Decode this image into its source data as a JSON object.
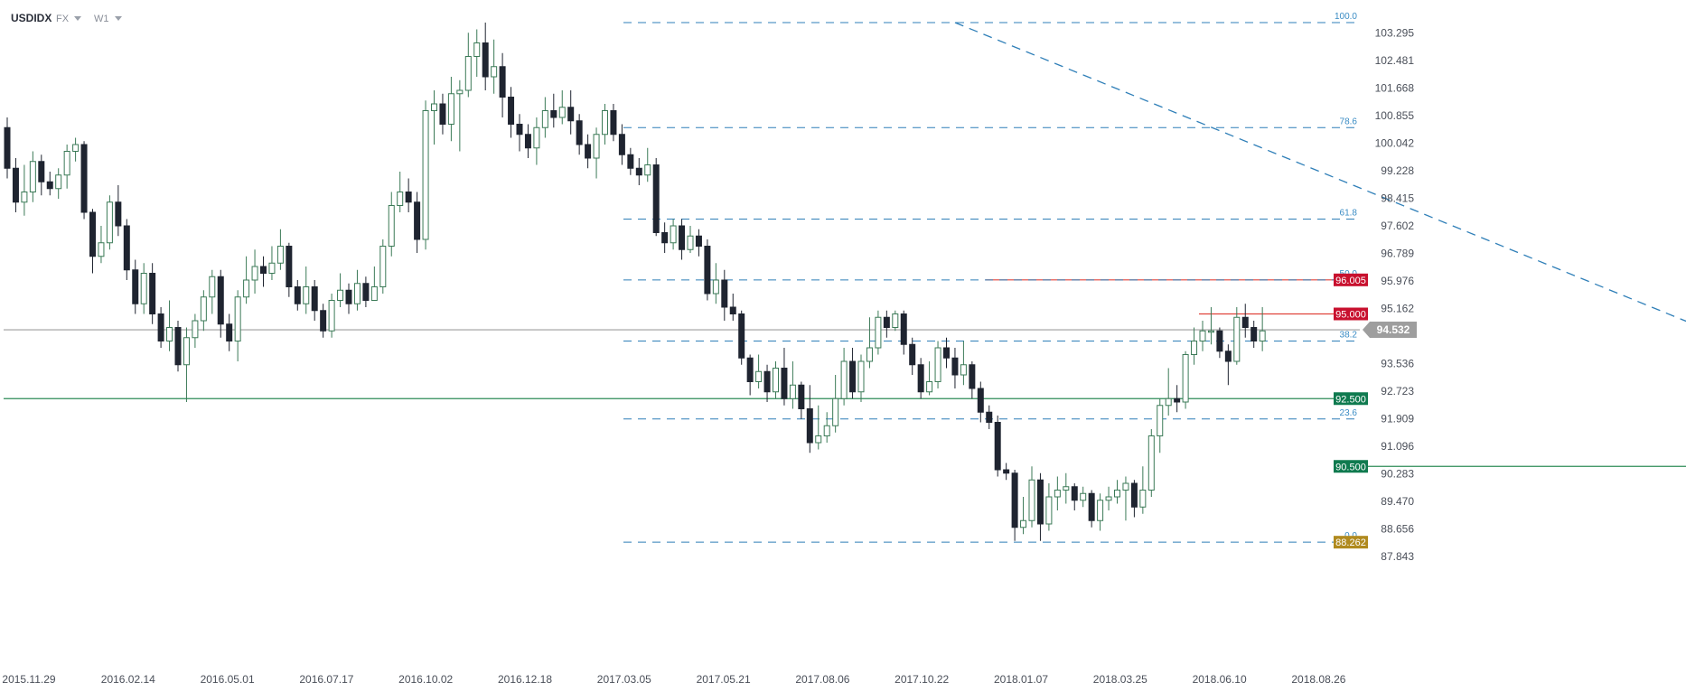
{
  "header": {
    "symbol": "USDIDX",
    "market": "FX",
    "interval": "W1"
  },
  "chart_data": {
    "type": "candlestick",
    "y_ticks": [
      103.295,
      102.481,
      101.668,
      100.855,
      100.042,
      99.228,
      98.415,
      97.602,
      96.789,
      95.976,
      95.162,
      93.536,
      92.723,
      91.909,
      91.096,
      90.283,
      89.47,
      88.656,
      87.843
    ],
    "ylim": [
      87.6,
      104.0
    ],
    "x_ticks": [
      "2015.11.29",
      "2016.02.14",
      "2016.05.01",
      "2016.07.17",
      "2016.10.02",
      "2016.12.18",
      "2017.03.05",
      "2017.05.21",
      "2017.08.06",
      "2017.10.22",
      "2018.01.07",
      "2018.03.25",
      "2018.06.10",
      "2018.08.26"
    ],
    "current_price": "94.532",
    "price_tags": [
      {
        "label": "96.005",
        "value": 96.005,
        "color": "#c8102e"
      },
      {
        "label": "95.000",
        "value": 95.0,
        "color": "#c8102e"
      },
      {
        "label": "92.500",
        "value": 92.5,
        "color": "#0f7a4f"
      },
      {
        "label": "90.500",
        "value": 90.5,
        "color": "#0f7a4f"
      },
      {
        "label": "88.262",
        "value": 88.262,
        "color": "#b08a1e"
      }
    ],
    "fib_levels": [
      {
        "label": "100.0",
        "value": 103.6
      },
      {
        "label": "78.6",
        "value": 100.5
      },
      {
        "label": "61.8",
        "value": 97.8
      },
      {
        "label": "50.0",
        "value": 96.005
      },
      {
        "label": "38.2",
        "value": 94.2
      },
      {
        "label": "23.6",
        "value": 91.9
      },
      {
        "label": "0.0",
        "value": 88.262
      }
    ],
    "horizontal_lines": [
      {
        "value": 96.005,
        "color": "#e0433a",
        "from_week": 115
      },
      {
        "value": 95.0,
        "color": "#e0433a",
        "from_week": 140
      },
      {
        "value": 92.5,
        "color": "#2e8b57",
        "from_week": 0
      },
      {
        "value": 90.5,
        "color": "#2e8b57",
        "from_week": 226
      },
      {
        "value": 94.532,
        "color": "#9e9e9e",
        "from_week": 0
      }
    ],
    "trendline": {
      "from": [
        111,
        103.6
      ],
      "to": [
        260,
        88.262
      ]
    },
    "highlight": {
      "week": 266,
      "value": 95.05
    },
    "candles": [
      [
        100.5,
        99.3,
        100.8,
        99.0
      ],
      [
        99.3,
        98.3,
        99.6,
        98.0
      ],
      [
        98.3,
        98.6,
        99.4,
        97.9
      ],
      [
        98.6,
        99.5,
        99.8,
        98.3
      ],
      [
        99.5,
        98.9,
        99.7,
        98.5
      ],
      [
        98.9,
        98.7,
        99.2,
        98.5
      ],
      [
        98.7,
        99.1,
        99.3,
        98.4
      ],
      [
        99.1,
        99.8,
        100.0,
        98.7
      ],
      [
        99.8,
        100.0,
        100.2,
        99.5
      ],
      [
        100.0,
        98.0,
        100.1,
        97.8
      ],
      [
        98.0,
        96.7,
        98.1,
        96.2
      ],
      [
        96.7,
        97.1,
        97.6,
        96.5
      ],
      [
        97.1,
        98.3,
        98.5,
        96.9
      ],
      [
        98.3,
        97.6,
        98.8,
        97.3
      ],
      [
        97.6,
        96.3,
        97.8,
        96.0
      ],
      [
        96.3,
        95.3,
        96.6,
        95.0
      ],
      [
        95.3,
        96.2,
        96.5,
        95.0
      ],
      [
        96.2,
        95.0,
        96.5,
        94.7
      ],
      [
        95.0,
        94.2,
        95.2,
        94.0
      ],
      [
        94.2,
        94.6,
        95.4,
        93.9
      ],
      [
        94.6,
        93.5,
        94.8,
        93.3
      ],
      [
        93.5,
        94.3,
        94.6,
        92.4
      ],
      [
        94.3,
        94.8,
        95.0,
        94.0
      ],
      [
        94.8,
        95.5,
        95.7,
        94.5
      ],
      [
        95.5,
        96.1,
        96.3,
        95.0
      ],
      [
        96.1,
        94.7,
        96.3,
        94.3
      ],
      [
        94.7,
        94.2,
        95.0,
        93.9
      ],
      [
        94.2,
        95.5,
        95.7,
        93.6
      ],
      [
        95.5,
        96.0,
        96.7,
        95.3
      ],
      [
        96.0,
        96.4,
        96.9,
        95.6
      ],
      [
        96.4,
        96.2,
        96.7,
        95.8
      ],
      [
        96.2,
        96.5,
        97.0,
        96.0
      ],
      [
        96.5,
        97.0,
        97.5,
        96.3
      ],
      [
        97.0,
        95.8,
        97.1,
        95.5
      ],
      [
        95.8,
        95.3,
        96.0,
        95.1
      ],
      [
        95.3,
        95.8,
        96.4,
        95.0
      ],
      [
        95.8,
        95.1,
        96.0,
        94.8
      ],
      [
        95.1,
        94.5,
        95.3,
        94.3
      ],
      [
        94.5,
        95.4,
        95.6,
        94.3
      ],
      [
        95.4,
        95.7,
        96.2,
        95.2
      ],
      [
        95.7,
        95.3,
        95.9,
        95.0
      ],
      [
        95.3,
        95.9,
        96.3,
        95.1
      ],
      [
        95.9,
        95.4,
        96.1,
        95.2
      ],
      [
        95.4,
        95.8,
        96.4,
        95.6
      ],
      [
        95.8,
        97.0,
        97.2,
        95.6
      ],
      [
        97.0,
        98.2,
        98.6,
        96.7
      ],
      [
        98.2,
        98.6,
        99.2,
        98.0
      ],
      [
        98.6,
        98.3,
        99.0,
        98.0
      ],
      [
        98.3,
        97.2,
        98.6,
        96.8
      ],
      [
        97.2,
        101.0,
        101.3,
        96.9
      ],
      [
        101.0,
        101.2,
        101.6,
        100.0
      ],
      [
        101.2,
        100.6,
        101.5,
        100.3
      ],
      [
        100.6,
        101.5,
        102.0,
        100.1
      ],
      [
        101.5,
        101.6,
        101.9,
        99.8
      ],
      [
        101.6,
        102.6,
        103.3,
        101.4
      ],
      [
        102.6,
        103.0,
        103.4,
        102.0
      ],
      [
        103.0,
        102.0,
        103.6,
        101.6
      ],
      [
        102.0,
        102.3,
        103.1,
        101.5
      ],
      [
        102.3,
        101.4,
        102.7,
        100.8
      ],
      [
        101.4,
        100.6,
        101.7,
        100.2
      ],
      [
        100.6,
        100.3,
        100.9,
        99.8
      ],
      [
        100.3,
        99.9,
        100.6,
        99.6
      ],
      [
        99.9,
        100.5,
        100.8,
        99.4
      ],
      [
        100.5,
        101.0,
        101.4,
        100.2
      ],
      [
        101.0,
        100.8,
        101.5,
        100.5
      ],
      [
        100.8,
        101.1,
        101.6,
        100.6
      ],
      [
        101.1,
        100.7,
        101.6,
        100.3
      ],
      [
        100.7,
        100.0,
        100.9,
        99.7
      ],
      [
        100.0,
        99.6,
        100.3,
        99.3
      ],
      [
        99.6,
        100.3,
        100.5,
        99.0
      ],
      [
        100.3,
        101.0,
        101.2,
        100.0
      ],
      [
        101.0,
        100.3,
        101.2,
        100.1
      ],
      [
        100.3,
        99.7,
        100.6,
        99.4
      ],
      [
        99.7,
        99.3,
        99.9,
        99.1
      ],
      [
        99.3,
        99.1,
        99.6,
        98.8
      ],
      [
        99.1,
        99.4,
        99.9,
        98.9
      ],
      [
        99.4,
        97.4,
        99.6,
        97.3
      ],
      [
        97.4,
        97.1,
        97.7,
        96.8
      ],
      [
        97.1,
        97.6,
        97.8,
        96.9
      ],
      [
        97.6,
        96.9,
        97.8,
        96.6
      ],
      [
        96.9,
        97.3,
        97.6,
        96.8
      ],
      [
        97.3,
        97.0,
        97.5,
        96.7
      ],
      [
        97.0,
        95.6,
        97.2,
        95.4
      ],
      [
        95.6,
        96.0,
        96.5,
        95.3
      ],
      [
        96.0,
        95.2,
        96.3,
        94.8
      ],
      [
        95.2,
        95.0,
        95.6,
        94.8
      ],
      [
        95.0,
        93.7,
        95.1,
        93.5
      ],
      [
        93.7,
        93.0,
        93.8,
        92.6
      ],
      [
        93.0,
        93.3,
        93.8,
        92.8
      ],
      [
        93.3,
        92.7,
        93.5,
        92.4
      ],
      [
        92.7,
        93.4,
        93.6,
        92.5
      ],
      [
        93.4,
        92.5,
        94.0,
        92.3
      ],
      [
        92.5,
        92.9,
        93.6,
        92.2
      ],
      [
        92.9,
        92.2,
        93.0,
        91.9
      ],
      [
        92.2,
        91.2,
        92.9,
        90.9
      ],
      [
        91.2,
        91.4,
        92.3,
        91.0
      ],
      [
        91.4,
        91.7,
        92.1,
        91.2
      ],
      [
        91.7,
        92.5,
        93.2,
        91.5
      ],
      [
        92.5,
        93.6,
        94.0,
        92.3
      ],
      [
        93.6,
        92.7,
        94.0,
        92.5
      ],
      [
        92.7,
        93.6,
        93.8,
        92.4
      ],
      [
        93.6,
        94.0,
        94.9,
        93.4
      ],
      [
        94.0,
        94.9,
        95.1,
        93.8
      ],
      [
        94.9,
        94.6,
        95.1,
        94.3
      ],
      [
        94.6,
        95.0,
        95.1,
        94.5
      ],
      [
        95.0,
        94.1,
        95.1,
        93.8
      ],
      [
        94.1,
        93.5,
        94.3,
        93.2
      ],
      [
        93.5,
        92.7,
        93.7,
        92.5
      ],
      [
        92.7,
        93.0,
        93.6,
        92.6
      ],
      [
        93.0,
        94.0,
        94.2,
        92.8
      ],
      [
        94.0,
        93.7,
        94.3,
        93.4
      ],
      [
        93.7,
        93.2,
        94.0,
        92.8
      ],
      [
        93.2,
        93.5,
        94.2,
        92.9
      ],
      [
        93.5,
        92.8,
        93.6,
        92.5
      ],
      [
        92.8,
        92.1,
        93.0,
        91.8
      ],
      [
        92.1,
        91.8,
        92.3,
        91.6
      ],
      [
        91.8,
        90.4,
        92.0,
        90.2
      ],
      [
        90.4,
        90.3,
        90.6,
        90.1
      ],
      [
        90.3,
        88.7,
        90.4,
        88.3
      ],
      [
        88.7,
        88.9,
        89.6,
        88.5
      ],
      [
        88.9,
        90.1,
        90.5,
        88.7
      ],
      [
        90.1,
        88.8,
        90.3,
        88.3
      ],
      [
        88.8,
        89.6,
        90.0,
        88.6
      ],
      [
        89.6,
        89.8,
        90.2,
        89.2
      ],
      [
        89.8,
        89.9,
        90.3,
        89.4
      ],
      [
        89.9,
        89.5,
        90.0,
        89.2
      ],
      [
        89.5,
        89.7,
        89.9,
        89.3
      ],
      [
        89.7,
        88.9,
        89.8,
        88.7
      ],
      [
        88.9,
        89.5,
        89.7,
        88.6
      ],
      [
        89.5,
        89.6,
        89.9,
        89.2
      ],
      [
        89.6,
        89.8,
        90.1,
        89.4
      ],
      [
        89.8,
        90.0,
        90.2,
        88.9
      ],
      [
        90.0,
        89.3,
        90.1,
        89.0
      ],
      [
        89.3,
        89.8,
        90.5,
        89.1
      ],
      [
        89.8,
        91.4,
        91.6,
        89.6
      ],
      [
        91.4,
        92.3,
        92.5,
        90.9
      ],
      [
        92.3,
        92.5,
        93.4,
        92.0
      ],
      [
        92.5,
        92.4,
        92.9,
        92.1
      ],
      [
        92.4,
        93.8,
        93.9,
        92.2
      ],
      [
        93.8,
        94.2,
        94.6,
        93.5
      ],
      [
        94.2,
        94.5,
        94.8,
        93.9
      ],
      [
        94.5,
        94.5,
        95.2,
        94.1
      ],
      [
        94.5,
        93.9,
        94.6,
        93.7
      ],
      [
        93.9,
        93.6,
        94.1,
        92.9
      ],
      [
        93.6,
        94.9,
        95.2,
        93.5
      ],
      [
        94.9,
        94.6,
        95.3,
        94.3
      ],
      [
        94.6,
        94.2,
        94.8,
        94.0
      ],
      [
        94.2,
        94.5,
        95.2,
        93.9
      ]
    ]
  }
}
